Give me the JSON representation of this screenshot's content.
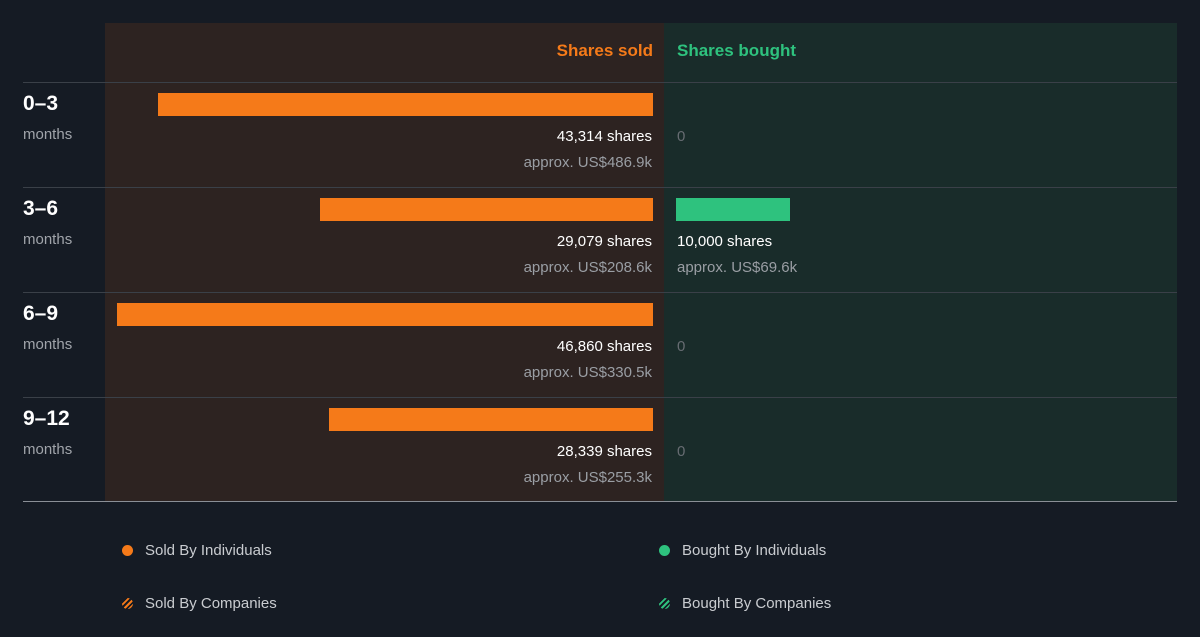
{
  "chart_data": {
    "type": "bar",
    "orientation": "horizontal-diverging",
    "headers": {
      "sold": "Shares sold",
      "bought": "Shares bought"
    },
    "max_value": 46860,
    "categories": [
      {
        "period": "0–3",
        "unit": "months",
        "sold": 43314,
        "sold_label": "43,314 shares",
        "sold_approx": "approx. US$486.9k",
        "bought": 0,
        "bought_label": "0",
        "bought_approx": ""
      },
      {
        "period": "3–6",
        "unit": "months",
        "sold": 29079,
        "sold_label": "29,079 shares",
        "sold_approx": "approx. US$208.6k",
        "bought": 10000,
        "bought_label": "10,000 shares",
        "bought_approx": "approx. US$69.6k"
      },
      {
        "period": "6–9",
        "unit": "months",
        "sold": 46860,
        "sold_label": "46,860 shares",
        "sold_approx": "approx. US$330.5k",
        "bought": 0,
        "bought_label": "0",
        "bought_approx": ""
      },
      {
        "period": "9–12",
        "unit": "months",
        "sold": 28339,
        "sold_label": "28,339 shares",
        "sold_approx": "approx. US$255.3k",
        "bought": 0,
        "bought_label": "0",
        "bought_approx": ""
      }
    ],
    "colors": {
      "sold": "#f57a19",
      "bought": "#2ec27e"
    },
    "legend": [
      {
        "label": "Sold By Individuals",
        "style": "dot",
        "color": "#f57a19"
      },
      {
        "label": "Bought By Individuals",
        "style": "dot",
        "color": "#2ec27e"
      },
      {
        "label": "Sold By Companies",
        "style": "hatched",
        "color": "#f57a19"
      },
      {
        "label": "Bought By Companies",
        "style": "hatched",
        "color": "#2ec27e"
      }
    ]
  }
}
